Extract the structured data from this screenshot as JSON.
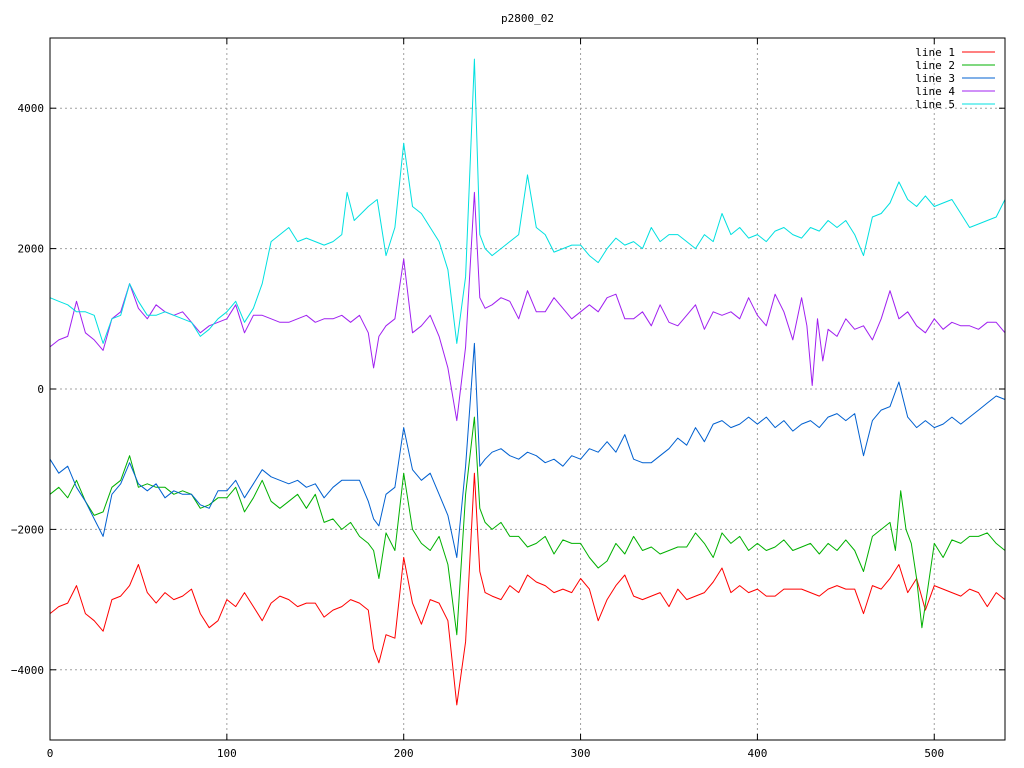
{
  "chart_data": {
    "type": "line",
    "title": "p2800_02",
    "xlabel": "",
    "ylabel": "",
    "xlim": [
      0,
      540
    ],
    "ylim": [
      -5000,
      5000
    ],
    "x_ticks": [
      0,
      100,
      200,
      300,
      400,
      500
    ],
    "y_ticks": [
      -4000,
      -2000,
      0,
      2000,
      4000
    ],
    "grid": true,
    "legend_position": "top-right",
    "series": [
      {
        "name": "line 1",
        "color": "#ff0000",
        "x": [
          0,
          5,
          10,
          15,
          20,
          25,
          30,
          35,
          40,
          45,
          50,
          55,
          60,
          65,
          70,
          75,
          80,
          85,
          90,
          95,
          100,
          105,
          110,
          115,
          120,
          125,
          130,
          135,
          140,
          145,
          150,
          155,
          160,
          165,
          170,
          175,
          180,
          183,
          186,
          190,
          195,
          200,
          205,
          210,
          215,
          220,
          225,
          230,
          235,
          240,
          243,
          246,
          250,
          255,
          260,
          265,
          270,
          275,
          280,
          285,
          290,
          295,
          300,
          305,
          310,
          315,
          320,
          325,
          330,
          335,
          340,
          345,
          350,
          355,
          360,
          365,
          370,
          375,
          380,
          385,
          390,
          395,
          400,
          405,
          410,
          415,
          420,
          425,
          430,
          435,
          440,
          445,
          450,
          455,
          460,
          465,
          470,
          475,
          480,
          485,
          490,
          495,
          500,
          505,
          510,
          515,
          520,
          525,
          530,
          535,
          540
        ],
        "y": [
          -3200,
          -3100,
          -3050,
          -2800,
          -3200,
          -3300,
          -3450,
          -3000,
          -2950,
          -2800,
          -2500,
          -2900,
          -3050,
          -2900,
          -3000,
          -2950,
          -2850,
          -3200,
          -3400,
          -3300,
          -3000,
          -3100,
          -2900,
          -3100,
          -3300,
          -3050,
          -2950,
          -3000,
          -3100,
          -3050,
          -3050,
          -3250,
          -3150,
          -3100,
          -3000,
          -3050,
          -3150,
          -3700,
          -3900,
          -3500,
          -3550,
          -2400,
          -3050,
          -3350,
          -3000,
          -3050,
          -3300,
          -4500,
          -3600,
          -1200,
          -2600,
          -2900,
          -2950,
          -3000,
          -2800,
          -2900,
          -2650,
          -2750,
          -2800,
          -2900,
          -2850,
          -2900,
          -2700,
          -2850,
          -3300,
          -3000,
          -2800,
          -2650,
          -2950,
          -3000,
          -2950,
          -2900,
          -3100,
          -2850,
          -3000,
          -2950,
          -2900,
          -2750,
          -2550,
          -2900,
          -2800,
          -2900,
          -2850,
          -2950,
          -2950,
          -2850,
          -2850,
          -2850,
          -2900,
          -2950,
          -2850,
          -2800,
          -2850,
          -2850,
          -3200,
          -2800,
          -2850,
          -2700,
          -2500,
          -2900,
          -2700,
          -3150,
          -2800,
          -2850,
          -2900,
          -2950,
          -2850,
          -2900,
          -3100,
          -2900,
          -3000
        ]
      },
      {
        "name": "line 2",
        "color": "#00b000",
        "x": [
          0,
          5,
          10,
          15,
          20,
          25,
          30,
          35,
          40,
          45,
          50,
          55,
          60,
          65,
          70,
          75,
          80,
          85,
          90,
          95,
          100,
          105,
          110,
          115,
          120,
          125,
          130,
          135,
          140,
          145,
          150,
          155,
          160,
          165,
          170,
          175,
          180,
          183,
          186,
          190,
          195,
          200,
          205,
          210,
          215,
          220,
          225,
          230,
          235,
          240,
          243,
          246,
          250,
          255,
          260,
          265,
          270,
          275,
          280,
          285,
          290,
          295,
          300,
          305,
          310,
          315,
          320,
          325,
          330,
          335,
          340,
          345,
          350,
          355,
          360,
          365,
          370,
          375,
          380,
          385,
          390,
          395,
          400,
          405,
          410,
          415,
          420,
          425,
          430,
          435,
          440,
          445,
          450,
          455,
          460,
          465,
          470,
          475,
          478,
          481,
          484,
          487,
          490,
          493,
          496,
          500,
          505,
          510,
          515,
          520,
          525,
          530,
          535,
          540
        ],
        "y": [
          -1500,
          -1400,
          -1550,
          -1300,
          -1600,
          -1800,
          -1750,
          -1400,
          -1300,
          -950,
          -1400,
          -1350,
          -1400,
          -1400,
          -1500,
          -1450,
          -1500,
          -1700,
          -1650,
          -1550,
          -1550,
          -1400,
          -1750,
          -1550,
          -1300,
          -1600,
          -1700,
          -1600,
          -1500,
          -1700,
          -1500,
          -1900,
          -1850,
          -2000,
          -1900,
          -2100,
          -2200,
          -2300,
          -2700,
          -2050,
          -2300,
          -1200,
          -2000,
          -2200,
          -2300,
          -2100,
          -2500,
          -3500,
          -1500,
          -400,
          -1700,
          -1900,
          -2000,
          -1900,
          -2100,
          -2100,
          -2250,
          -2200,
          -2100,
          -2350,
          -2150,
          -2200,
          -2200,
          -2400,
          -2550,
          -2450,
          -2200,
          -2350,
          -2100,
          -2300,
          -2250,
          -2350,
          -2300,
          -2250,
          -2250,
          -2050,
          -2200,
          -2400,
          -2050,
          -2200,
          -2100,
          -2300,
          -2200,
          -2300,
          -2250,
          -2150,
          -2300,
          -2250,
          -2200,
          -2350,
          -2200,
          -2300,
          -2150,
          -2300,
          -2600,
          -2100,
          -2000,
          -1900,
          -2300,
          -1450,
          -2000,
          -2200,
          -2700,
          -3400,
          -2900,
          -2200,
          -2400,
          -2150,
          -2200,
          -2100,
          -2100,
          -2050,
          -2200,
          -2300
        ]
      },
      {
        "name": "line 3",
        "color": "#0060d0",
        "x": [
          0,
          5,
          10,
          15,
          20,
          25,
          30,
          35,
          40,
          45,
          50,
          55,
          60,
          65,
          70,
          75,
          80,
          85,
          90,
          95,
          100,
          105,
          110,
          115,
          120,
          125,
          130,
          135,
          140,
          145,
          150,
          155,
          160,
          165,
          170,
          175,
          180,
          183,
          186,
          190,
          195,
          200,
          205,
          210,
          215,
          220,
          225,
          230,
          235,
          240,
          243,
          246,
          250,
          255,
          260,
          265,
          270,
          275,
          280,
          285,
          290,
          295,
          300,
          305,
          310,
          315,
          320,
          325,
          330,
          335,
          340,
          345,
          350,
          355,
          360,
          365,
          370,
          375,
          380,
          385,
          390,
          395,
          400,
          405,
          410,
          415,
          420,
          425,
          430,
          435,
          440,
          445,
          450,
          455,
          460,
          465,
          470,
          475,
          480,
          485,
          490,
          495,
          500,
          505,
          510,
          515,
          520,
          525,
          530,
          535,
          540
        ],
        "y": [
          -1000,
          -1200,
          -1100,
          -1400,
          -1600,
          -1850,
          -2100,
          -1500,
          -1350,
          -1050,
          -1350,
          -1450,
          -1350,
          -1550,
          -1450,
          -1500,
          -1500,
          -1650,
          -1700,
          -1450,
          -1450,
          -1300,
          -1550,
          -1350,
          -1150,
          -1250,
          -1300,
          -1350,
          -1300,
          -1400,
          -1350,
          -1550,
          -1400,
          -1300,
          -1300,
          -1300,
          -1600,
          -1850,
          -1950,
          -1500,
          -1400,
          -550,
          -1150,
          -1300,
          -1200,
          -1500,
          -1800,
          -2400,
          -1100,
          650,
          -1100,
          -1000,
          -900,
          -850,
          -950,
          -1000,
          -900,
          -950,
          -1050,
          -1000,
          -1100,
          -950,
          -1000,
          -850,
          -900,
          -750,
          -900,
          -650,
          -1000,
          -1050,
          -1050,
          -950,
          -850,
          -700,
          -800,
          -550,
          -750,
          -500,
          -450,
          -550,
          -500,
          -400,
          -500,
          -400,
          -550,
          -450,
          -600,
          -500,
          -450,
          -550,
          -400,
          -350,
          -450,
          -350,
          -950,
          -450,
          -300,
          -250,
          100,
          -400,
          -550,
          -450,
          -550,
          -500,
          -400,
          -500,
          -400,
          -300,
          -200,
          -100,
          -150
        ]
      },
      {
        "name": "line 4",
        "color": "#a020f0",
        "x": [
          0,
          5,
          10,
          15,
          20,
          25,
          30,
          35,
          40,
          45,
          50,
          55,
          60,
          65,
          70,
          75,
          80,
          85,
          90,
          95,
          100,
          105,
          110,
          115,
          120,
          125,
          130,
          135,
          140,
          145,
          150,
          155,
          160,
          165,
          170,
          175,
          180,
          183,
          186,
          190,
          195,
          200,
          205,
          210,
          215,
          220,
          225,
          230,
          235,
          240,
          243,
          246,
          250,
          255,
          260,
          265,
          270,
          275,
          280,
          285,
          290,
          295,
          300,
          305,
          310,
          315,
          320,
          325,
          330,
          335,
          340,
          345,
          350,
          355,
          360,
          365,
          370,
          375,
          380,
          385,
          390,
          395,
          400,
          405,
          410,
          415,
          420,
          425,
          428,
          431,
          434,
          437,
          440,
          445,
          450,
          455,
          460,
          465,
          470,
          475,
          480,
          485,
          490,
          495,
          500,
          505,
          510,
          515,
          520,
          525,
          530,
          535,
          540
        ],
        "y": [
          600,
          700,
          750,
          1250,
          800,
          700,
          550,
          1000,
          1100,
          1500,
          1150,
          1000,
          1200,
          1100,
          1050,
          1100,
          950,
          800,
          900,
          950,
          1000,
          1200,
          800,
          1050,
          1050,
          1000,
          950,
          950,
          1000,
          1050,
          950,
          1000,
          1000,
          1050,
          950,
          1050,
          800,
          300,
          750,
          900,
          1000,
          1850,
          800,
          900,
          1050,
          750,
          300,
          -450,
          600,
          2800,
          1300,
          1150,
          1200,
          1300,
          1250,
          1000,
          1400,
          1100,
          1100,
          1300,
          1150,
          1000,
          1100,
          1200,
          1100,
          1300,
          1350,
          1000,
          1000,
          1100,
          900,
          1200,
          950,
          900,
          1050,
          1200,
          850,
          1100,
          1050,
          1100,
          1000,
          1300,
          1050,
          900,
          1350,
          1100,
          700,
          1300,
          900,
          50,
          1000,
          400,
          850,
          750,
          1000,
          850,
          900,
          700,
          1000,
          1400,
          1000,
          1100,
          900,
          800,
          1000,
          850,
          950,
          900,
          900,
          850,
          950,
          950,
          800
        ]
      },
      {
        "name": "line 5",
        "color": "#00e0e0",
        "x": [
          0,
          5,
          10,
          15,
          20,
          25,
          30,
          35,
          40,
          45,
          50,
          55,
          60,
          65,
          70,
          75,
          80,
          85,
          90,
          95,
          100,
          105,
          110,
          115,
          120,
          125,
          130,
          135,
          140,
          145,
          150,
          155,
          160,
          165,
          168,
          172,
          176,
          180,
          185,
          190,
          195,
          200,
          205,
          210,
          215,
          220,
          225,
          230,
          235,
          240,
          243,
          246,
          250,
          255,
          260,
          265,
          270,
          275,
          280,
          285,
          290,
          295,
          300,
          305,
          310,
          315,
          320,
          325,
          330,
          335,
          340,
          345,
          350,
          355,
          360,
          365,
          370,
          375,
          380,
          385,
          390,
          395,
          400,
          405,
          410,
          415,
          420,
          425,
          430,
          435,
          440,
          445,
          450,
          455,
          460,
          465,
          470,
          475,
          480,
          485,
          490,
          495,
          500,
          505,
          510,
          515,
          520,
          525,
          530,
          535,
          540
        ],
        "y": [
          1300,
          1250,
          1200,
          1100,
          1100,
          1050,
          650,
          1000,
          1050,
          1500,
          1250,
          1050,
          1050,
          1100,
          1050,
          1000,
          950,
          750,
          850,
          1000,
          1100,
          1250,
          950,
          1150,
          1500,
          2100,
          2200,
          2300,
          2100,
          2150,
          2100,
          2050,
          2100,
          2200,
          2800,
          2400,
          2500,
          2600,
          2700,
          1900,
          2300,
          3500,
          2600,
          2500,
          2300,
          2100,
          1700,
          650,
          1600,
          4700,
          2200,
          2000,
          1900,
          2000,
          2100,
          2200,
          3050,
          2300,
          2200,
          1950,
          2000,
          2050,
          2050,
          1900,
          1800,
          2000,
          2150,
          2050,
          2100,
          2000,
          2300,
          2100,
          2200,
          2200,
          2100,
          2000,
          2200,
          2100,
          2500,
          2200,
          2300,
          2150,
          2200,
          2100,
          2250,
          2300,
          2200,
          2150,
          2300,
          2250,
          2400,
          2300,
          2400,
          2200,
          1900,
          2450,
          2500,
          2650,
          2950,
          2700,
          2600,
          2750,
          2600,
          2650,
          2700,
          2500,
          2300,
          2350,
          2400,
          2450,
          2700
        ]
      }
    ]
  }
}
